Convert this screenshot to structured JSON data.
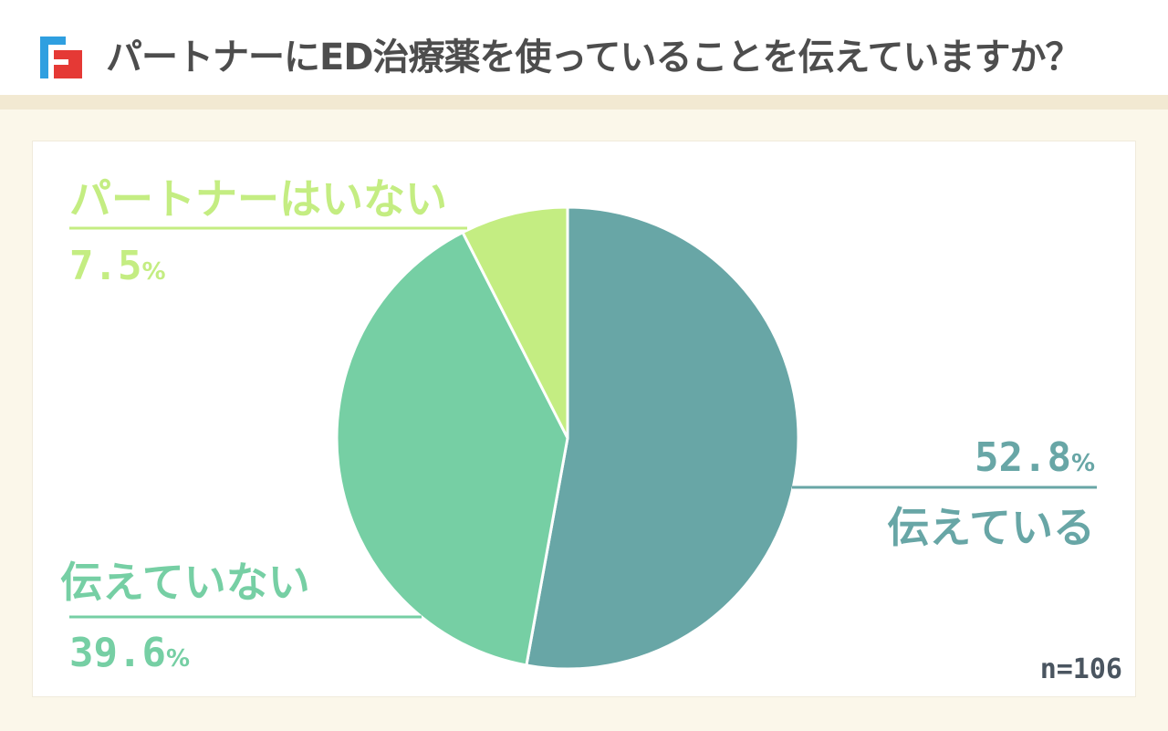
{
  "header": {
    "title": "パートナーにED治療薬を使っていることを伝えていますか？"
  },
  "colors": {
    "brand_blue": "#2f9fe0",
    "brand_red": "#e53935",
    "title_text": "#4d4d4d",
    "background": "#fbf7ea"
  },
  "chart_data": {
    "type": "pie",
    "title": "パートナーにED治療薬を使っていることを伝えていますか？",
    "note": "n=106",
    "percent_sign": "%",
    "slices": [
      {
        "label": "伝えている",
        "value": 52.8,
        "value_text": "52.8",
        "color": "#68a6a6"
      },
      {
        "label": "伝えていない",
        "value": 39.6,
        "value_text": "39.6",
        "color": "#76cfa4"
      },
      {
        "label": "パートナーはいない",
        "value": 7.5,
        "value_text": "7.5",
        "color": "#c4ed82"
      }
    ]
  }
}
